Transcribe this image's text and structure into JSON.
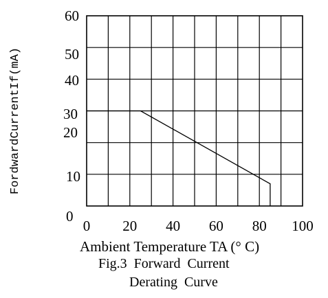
{
  "chart_data": {
    "type": "line",
    "xlabel": "Ambient Temperature TA (° C)",
    "ylabel": "FordwardCurrentIf(mA)",
    "caption_line1": "Fig.3  Forward  Current",
    "caption_line2": "Derating  Curve",
    "x_ticks": [
      "0",
      "20",
      "40",
      "60",
      "80",
      "100"
    ],
    "y_ticks": [
      "0",
      "10",
      "20",
      "30",
      "40",
      "50",
      "60"
    ],
    "xlim": [
      0,
      100
    ],
    "ylim": [
      0,
      60
    ],
    "grid": true,
    "series": [
      {
        "x": [
          0,
          25,
          85,
          85
        ],
        "y": [
          30,
          30,
          7,
          0
        ]
      }
    ]
  }
}
